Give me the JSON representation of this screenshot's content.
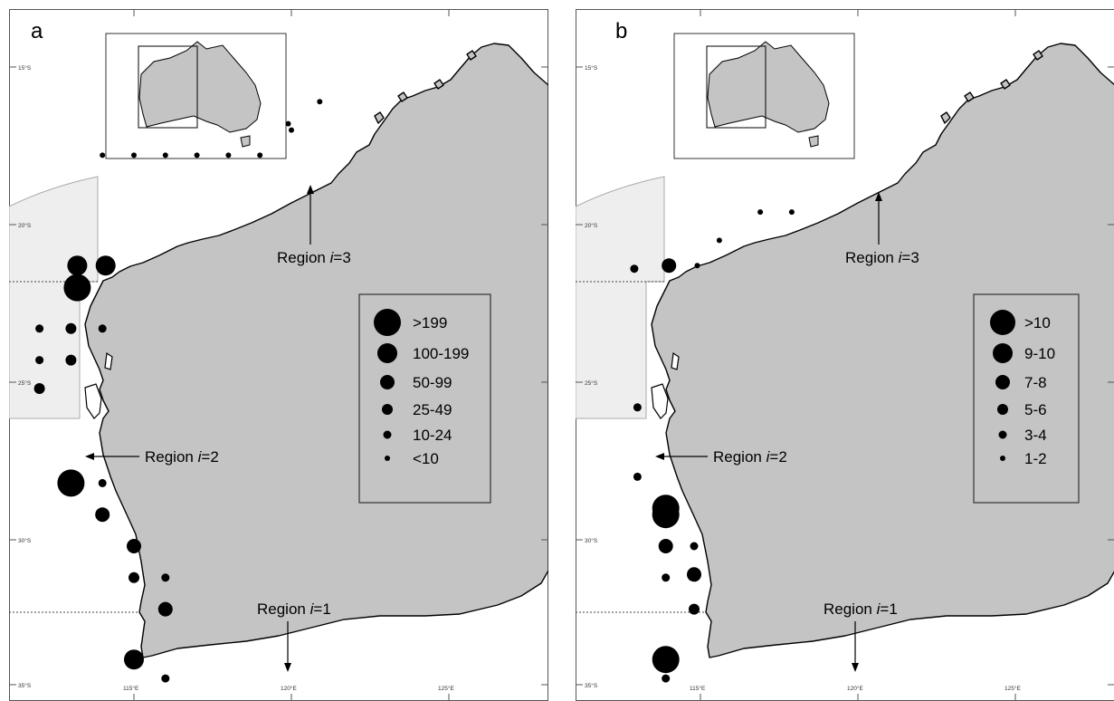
{
  "panels": [
    {
      "letter": "a",
      "coord_labels": {
        "lat": [
          "15°S",
          "20°S",
          "25°S",
          "30°S",
          "35°S"
        ],
        "lon": [
          "115°E",
          "120°E",
          "125°E"
        ]
      },
      "regions": [
        {
          "prefix": "Region ",
          "italic": "i",
          "suffix": "=3"
        },
        {
          "prefix": "Region ",
          "italic": "i",
          "suffix": "=2"
        },
        {
          "prefix": "Region ",
          "italic": "i",
          "suffix": "=1"
        }
      ],
      "legend": [
        ">199",
        "100-199",
        "50-99",
        "25-49",
        "10-24",
        "<10"
      ],
      "sightings": [
        {
          "lon": 113.2,
          "lat": -21.3,
          "cls": 1
        },
        {
          "lon": 114.1,
          "lat": -21.3,
          "cls": 1
        },
        {
          "lon": 113.2,
          "lat": -22.0,
          "cls": 0
        },
        {
          "lon": 114.0,
          "lat": -17.8,
          "cls": 5
        },
        {
          "lon": 115.0,
          "lat": -17.8,
          "cls": 5
        },
        {
          "lon": 116.0,
          "lat": -17.8,
          "cls": 5
        },
        {
          "lon": 117.0,
          "lat": -17.8,
          "cls": 5
        },
        {
          "lon": 118.0,
          "lat": -17.8,
          "cls": 5
        },
        {
          "lon": 119.0,
          "lat": -17.8,
          "cls": 5
        },
        {
          "lon": 120.0,
          "lat": -17.0,
          "cls": 5
        },
        {
          "lon": 120.9,
          "lat": -16.1,
          "cls": 5
        },
        {
          "lon": 119.9,
          "lat": -16.8,
          "cls": 5
        },
        {
          "lon": 112.0,
          "lat": -23.3,
          "cls": 4
        },
        {
          "lon": 112.0,
          "lat": -24.3,
          "cls": 4
        },
        {
          "lon": 112.0,
          "lat": -25.2,
          "cls": 3
        },
        {
          "lon": 113.0,
          "lat": -23.3,
          "cls": 3
        },
        {
          "lon": 113.0,
          "lat": -24.3,
          "cls": 3
        },
        {
          "lon": 114.0,
          "lat": -23.3,
          "cls": 4
        },
        {
          "lon": 113.0,
          "lat": -28.2,
          "cls": 0
        },
        {
          "lon": 114.0,
          "lat": -28.2,
          "cls": 4
        },
        {
          "lon": 114.0,
          "lat": -29.2,
          "cls": 2
        },
        {
          "lon": 115.0,
          "lat": -30.2,
          "cls": 2
        },
        {
          "lon": 115.0,
          "lat": -31.2,
          "cls": 3
        },
        {
          "lon": 116.0,
          "lat": -31.2,
          "cls": 4
        },
        {
          "lon": 116.0,
          "lat": -32.2,
          "cls": 2
        },
        {
          "lon": 115.0,
          "lat": -33.8,
          "cls": 1
        },
        {
          "lon": 116.0,
          "lat": -34.4,
          "cls": 4
        }
      ]
    },
    {
      "letter": "b",
      "coord_labels": {
        "lat": [
          "15°S",
          "20°S",
          "25°S",
          "30°S",
          "35°S"
        ],
        "lon": [
          "115°E",
          "120°E",
          "125°E"
        ]
      },
      "regions": [
        {
          "prefix": "Region ",
          "italic": "i",
          "suffix": "=3"
        },
        {
          "prefix": "Region ",
          "italic": "i",
          "suffix": "=2"
        },
        {
          "prefix": "Region ",
          "italic": "i",
          "suffix": "=1"
        }
      ],
      "legend": [
        ">10",
        "9-10",
        "7-8",
        "5-6",
        "3-4",
        "1-2"
      ],
      "sightings": [
        {
          "lon": 112.9,
          "lat": -21.4,
          "cls": 4
        },
        {
          "lon": 114.0,
          "lat": -21.3,
          "cls": 2
        },
        {
          "lon": 114.9,
          "lat": -21.3,
          "cls": 5
        },
        {
          "lon": 115.6,
          "lat": -20.5,
          "cls": 5
        },
        {
          "lon": 116.9,
          "lat": -19.6,
          "cls": 5
        },
        {
          "lon": 117.9,
          "lat": -19.6,
          "cls": 5
        },
        {
          "lon": 113.0,
          "lat": -25.8,
          "cls": 4
        },
        {
          "lon": 113.0,
          "lat": -28.0,
          "cls": 4
        },
        {
          "lon": 113.9,
          "lat": -29.0,
          "cls": 0
        },
        {
          "lon": 113.9,
          "lat": -29.2,
          "cls": 0
        },
        {
          "lon": 113.9,
          "lat": -30.2,
          "cls": 2
        },
        {
          "lon": 114.8,
          "lat": -30.2,
          "cls": 4
        },
        {
          "lon": 113.9,
          "lat": -31.2,
          "cls": 4
        },
        {
          "lon": 114.8,
          "lat": -31.1,
          "cls": 2
        },
        {
          "lon": 114.8,
          "lat": -32.2,
          "cls": 3
        },
        {
          "lon": 113.9,
          "lat": -33.8,
          "cls": 0
        },
        {
          "lon": 113.9,
          "lat": -34.4,
          "cls": 4
        }
      ]
    }
  ]
}
